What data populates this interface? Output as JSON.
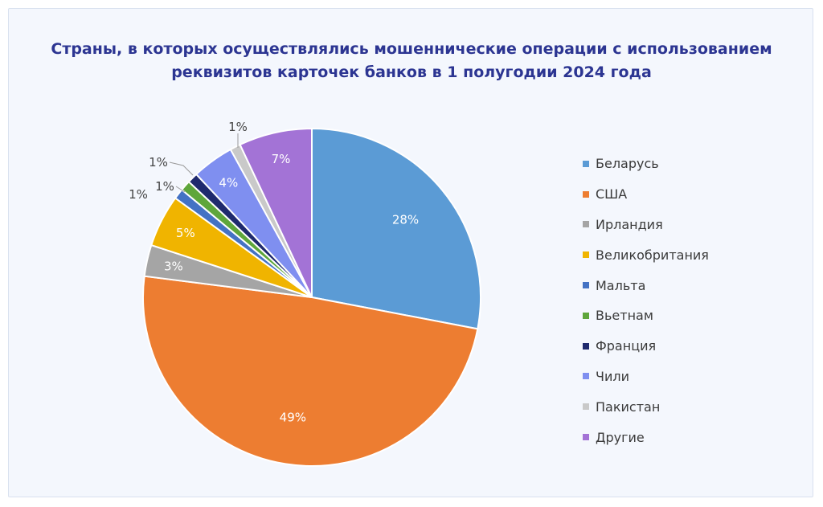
{
  "chart_data": {
    "type": "pie",
    "title_lines": [
      "Страны, в которых осуществлялись мошеннические операции с использованием",
      "реквизитов карточек банков в 1 полугодии 2024 года"
    ],
    "legend_position": "right",
    "slices": [
      {
        "name": "Беларусь",
        "value": 28,
        "label": "28%",
        "color": "#5b9bd5"
      },
      {
        "name": "США",
        "value": 49,
        "label": "49%",
        "color": "#ed7d31"
      },
      {
        "name": "Ирландия",
        "value": 3,
        "label": "3%",
        "color": "#a5a5a5"
      },
      {
        "name": "Великобритания",
        "value": 5,
        "label": "5%",
        "color": "#f0b400"
      },
      {
        "name": "Мальта",
        "value": 1,
        "label": "1%",
        "color": "#4472c4"
      },
      {
        "name": "Вьетнам",
        "value": 1,
        "label": "1%",
        "color": "#5ea63b"
      },
      {
        "name": "Франция",
        "value": 1,
        "label": "1%",
        "color": "#1f2a6e"
      },
      {
        "name": "Чили",
        "value": 4,
        "label": "4%",
        "color": "#7f8ff0"
      },
      {
        "name": "Пакистан",
        "value": 1,
        "label": "1%",
        "color": "#c9c9c9"
      },
      {
        "name": "Другие",
        "value": 7,
        "label": "7%",
        "color": "#a373d6"
      }
    ]
  }
}
